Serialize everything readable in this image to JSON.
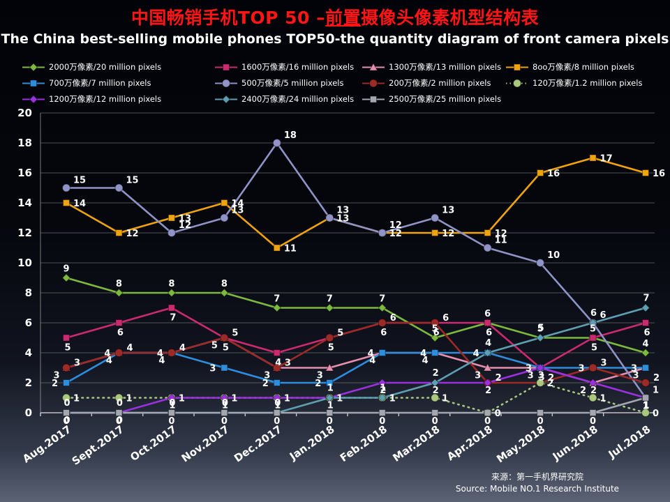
{
  "header": {
    "title_zh_part1": "中国畅销手机TOP 50 –",
    "title_zh_highlight": "前置",
    "title_zh_part2": "摄像头像素机型结构表",
    "title_en": "The China best-selling mobile phones TOP50-the quantity diagram of front camera pixels",
    "title_color": "#ff1515"
  },
  "footer": {
    "source_zh": "来源：第一手机界研究院",
    "source_en": "Source: Mobile NO.1 Research Institute"
  },
  "chart_data": {
    "type": "line",
    "title": "中国畅销手机TOP 50 – 前置摄像头像素机型结构表",
    "subtitle": "The China best-selling mobile phones TOP50-the quantity diagram of front camera pixels",
    "xlabel": "",
    "ylabel": "",
    "ylim": [
      0,
      20
    ],
    "yticks": [
      0,
      2,
      4,
      6,
      8,
      10,
      12,
      14,
      16,
      18,
      20
    ],
    "grid": "horizontal",
    "legend_position": "top",
    "categories": [
      "Aug.2017",
      "Sept.2017",
      "Oct.2017",
      "Nov.2017",
      "Dec.2017",
      "Jan.2018",
      "Feb.2018",
      "Mar.2018",
      "Apr.2018",
      "May.2018",
      "Jun.2018",
      "Jul.2018"
    ],
    "series": [
      {
        "name": "2000万像素/20 million pixels",
        "color": "#7cb93e",
        "marker": "diamond",
        "dashed": false,
        "values": [
          9,
          8,
          8,
          8,
          7,
          7,
          7,
          5,
          6,
          5,
          5,
          4
        ]
      },
      {
        "name": "1600万像素/16 million pixels",
        "color": "#cb2a70",
        "marker": "square",
        "dashed": false,
        "values": [
          5,
          6,
          7,
          5,
          4,
          5,
          6,
          6,
          6,
          3,
          5,
          6
        ]
      },
      {
        "name": "1300万像素/13 million pixels",
        "color": "#e78fae",
        "marker": "triangle",
        "dashed": false,
        "values": [
          3,
          4,
          4,
          5,
          3,
          3,
          4,
          4,
          3,
          3,
          2,
          3
        ]
      },
      {
        "name": "8oo万像素/8 million pixels",
        "color": "#f0a30a",
        "marker": "square",
        "dashed": false,
        "values": [
          14,
          12,
          13,
          14,
          11,
          13,
          12,
          12,
          12,
          16,
          17,
          16
        ]
      },
      {
        "name": "700万像素/7 million pixels",
        "color": "#2e8ede",
        "marker": "square",
        "dashed": false,
        "values": [
          2,
          4,
          4,
          3,
          2,
          2,
          4,
          4,
          4,
          3,
          3,
          3
        ]
      },
      {
        "name": "500万像素/5 million pixels",
        "color": "#8f93c6",
        "marker": "circle",
        "dashed": false,
        "values": [
          15,
          15,
          12,
          13,
          18,
          13,
          12,
          13,
          11,
          10,
          6,
          1
        ]
      },
      {
        "name": "200万像素/2 million pixels",
        "color": "#9c2a26",
        "marker": "circle",
        "dashed": false,
        "values": [
          3,
          4,
          4,
          5,
          3,
          5,
          6,
          6,
          2,
          2,
          3,
          2
        ]
      },
      {
        "name": "120万像素/1.2 million pixels",
        "color": "#a9c77e",
        "marker": "circle",
        "dashed": true,
        "values": [
          1,
          1,
          1,
          1,
          1,
          1,
          1,
          1,
          0,
          2,
          1,
          0
        ]
      },
      {
        "name": "1200万像素/12 million pixels",
        "color": "#9b30e0",
        "marker": "diamond",
        "dashed": false,
        "values": [
          0,
          0,
          1,
          1,
          1,
          1,
          2,
          2,
          2,
          3,
          2,
          1
        ]
      },
      {
        "name": "2400万像素/24 million pixels",
        "color": "#5f9fb2",
        "marker": "diamond",
        "dashed": false,
        "values": [
          0,
          0,
          0,
          0,
          0,
          1,
          1,
          2,
          4,
          5,
          6,
          7
        ]
      },
      {
        "name": "2500万像素/25 million pixels",
        "color": "#a3a7b0",
        "marker": "square",
        "dashed": false,
        "values": [
          0,
          0,
          0,
          0,
          0,
          0,
          0,
          0,
          0,
          0,
          0,
          1
        ]
      }
    ]
  }
}
